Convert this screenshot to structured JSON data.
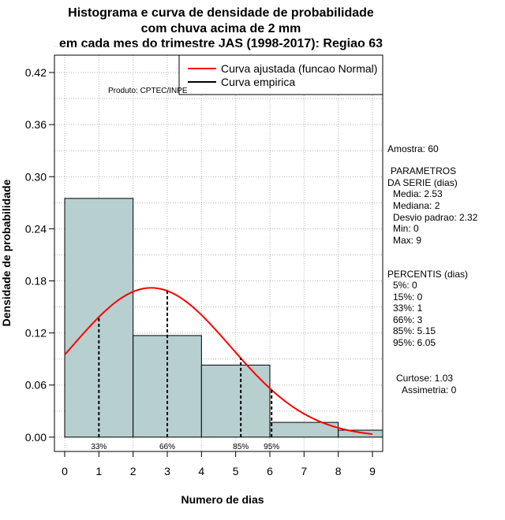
{
  "titles": [
    "Histograma e curva de densidade de probabilidade",
    "com chuva acima de 2 mm",
    "em cada mes do trimestre JAS (1998-2017): Regiao 63"
  ],
  "produto": "Produto: CPTEC/INPE",
  "legend": {
    "fitted": "Curva ajustada (funcao Normal)",
    "empirical": "Curva empirica",
    "fitted_color": "#ff0000",
    "empirical_color": "#000000"
  },
  "stats": {
    "amostra": "Amostra: 60",
    "parametros_title_1": "PARAMETROS",
    "parametros_title_2": "DA SERIE (dias)",
    "media": "Media: 2.53",
    "mediana": "Mediana: 2",
    "desvio": "Desvio padrao: 2.32",
    "min": "Min: 0",
    "max": "Max: 9",
    "percentis_title": "PERCENTIS (dias)",
    "p5": "5%: 0",
    "p15": "15%: 0",
    "p33": "33%: 1",
    "p66": "66%: 3",
    "p85": "85%: 5.15",
    "p95": "95%: 6.05",
    "curtose": "Curtose: 1.03",
    "assimetria": "Assimetria: 0"
  },
  "chart_data": {
    "type": "bar",
    "title": "Histograma e curva de densidade de probabilidade com chuva acima de 2 mm em cada mes do trimestre JAS (1998-2017): Regiao 63",
    "xlabel": "Numero de dias",
    "ylabel": "Densidade de probabilidade",
    "xlim": [
      -0.3,
      9.3
    ],
    "ylim": [
      -0.0165,
      0.44
    ],
    "x_ticks": [
      0,
      1,
      2,
      3,
      4,
      5,
      6,
      7,
      8,
      9
    ],
    "y_ticks": [
      0.0,
      0.06,
      0.12,
      0.18,
      0.24,
      0.3,
      0.36,
      0.42
    ],
    "y_tick_labels": [
      "0.00",
      "0.06",
      "0.12",
      "0.18",
      "0.24",
      "0.30",
      "0.36",
      "0.42"
    ],
    "bar_color": "#b7cfcf",
    "bins": [
      {
        "from": 0,
        "to": 2,
        "density": 0.275
      },
      {
        "from": 2,
        "to": 4,
        "density": 0.117
      },
      {
        "from": 4,
        "to": 6,
        "density": 0.083
      },
      {
        "from": 6,
        "to": 8,
        "density": 0.017
      },
      {
        "from": 8,
        "to": 10,
        "density": 0.008
      }
    ],
    "normal_fit": {
      "mean": 2.53,
      "sd": 2.32,
      "x_from": 0,
      "x_to": 9,
      "color": "#ff0000"
    },
    "percentile_lines": [
      {
        "label": "33%",
        "x": 1.0
      },
      {
        "label": "66%",
        "x": 3.0
      },
      {
        "label": "85%",
        "x": 5.15
      },
      {
        "label": "95%",
        "x": 6.05
      }
    ],
    "grid": true,
    "legend_position": "top-right"
  }
}
